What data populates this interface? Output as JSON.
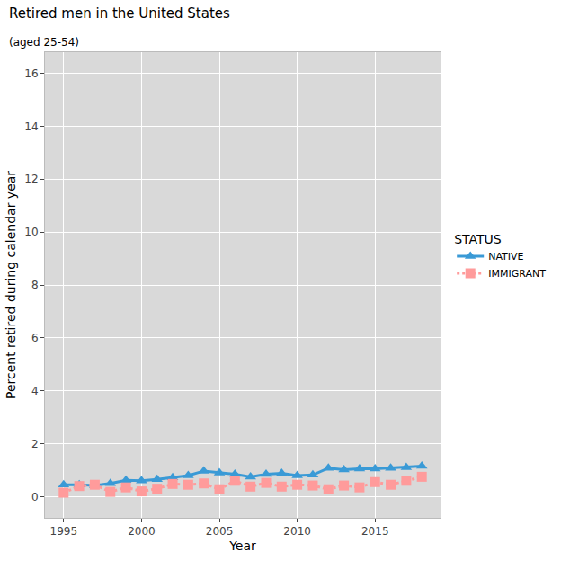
{
  "chart_data": {
    "type": "line",
    "title": "Retired men in the United States",
    "subtitle": "(aged 25-54)",
    "x_label": "Year",
    "y_label": "Percent retired during calendar year",
    "legend_title": "STATUS",
    "legend": "right",
    "grid": true,
    "x": [
      1995,
      1996,
      1997,
      1998,
      1999,
      2000,
      2001,
      2002,
      2003,
      2004,
      2005,
      2006,
      2007,
      2008,
      2009,
      2010,
      2011,
      2012,
      2013,
      2014,
      2015,
      2016,
      2017,
      2018
    ],
    "xlim": [
      1993.8,
      2019.2
    ],
    "xticks": [
      1995,
      2000,
      2005,
      2010,
      2015
    ],
    "ylim": [
      -0.8,
      16.8
    ],
    "yticks": [
      0,
      2,
      4,
      6,
      8,
      10,
      12,
      14,
      16
    ],
    "series": [
      {
        "name": "NATIVE",
        "color": "#3a9ad6",
        "marker": "triangle",
        "line_style": "solid",
        "values": [
          0.45,
          0.45,
          0.42,
          0.5,
          0.62,
          0.6,
          0.65,
          0.72,
          0.8,
          0.97,
          0.9,
          0.85,
          0.75,
          0.85,
          0.88,
          0.8,
          0.82,
          1.08,
          1.02,
          1.05,
          1.05,
          1.08,
          1.1,
          1.15
        ]
      },
      {
        "name": "IMMIGRANT",
        "color": "#ff9b9b",
        "marker": "square",
        "line_style": "dotted",
        "values": [
          0.15,
          0.4,
          0.45,
          0.18,
          0.35,
          0.2,
          0.3,
          0.48,
          0.45,
          0.5,
          0.28,
          0.6,
          0.38,
          0.52,
          0.38,
          0.45,
          0.42,
          0.28,
          0.42,
          0.35,
          0.55,
          0.45,
          0.6,
          0.75
        ]
      }
    ]
  }
}
